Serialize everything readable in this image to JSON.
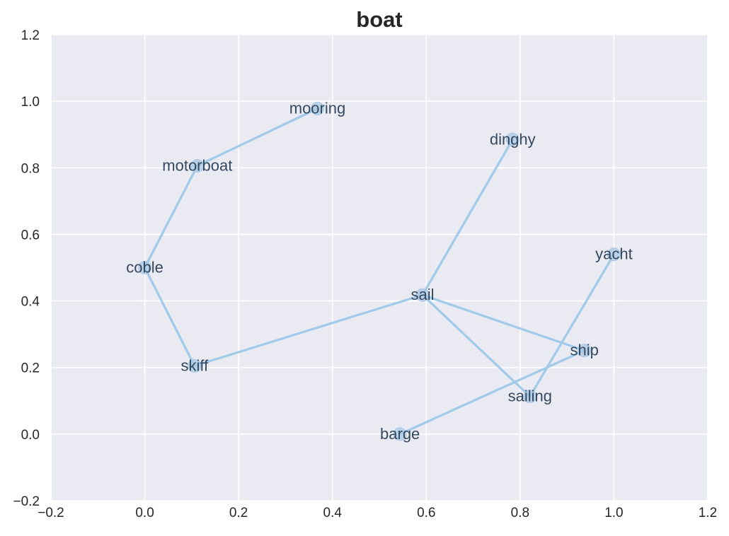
{
  "chart_data": {
    "type": "scatter",
    "title": "boat",
    "xlabel": "",
    "ylabel": "",
    "xlim": [
      -0.2,
      1.2
    ],
    "ylim": [
      -0.2,
      1.2
    ],
    "xticks": [
      "−0.2",
      "0.0",
      "0.2",
      "0.4",
      "0.6",
      "0.8",
      "1.0",
      "1.2"
    ],
    "yticks": [
      "−0.2",
      "0.0",
      "0.2",
      "0.4",
      "0.6",
      "0.8",
      "1.0",
      "1.2"
    ],
    "grid": true,
    "background_color": "#eaeaf2",
    "line_color": "#a1c9e8",
    "marker_color": "#a8c8e6",
    "label_color": "#34495e",
    "points": [
      {
        "label": "mooring",
        "x": 0.368,
        "y": 0.978
      },
      {
        "label": "motorboat",
        "x": 0.112,
        "y": 0.806
      },
      {
        "label": "coble",
        "x": 0.0,
        "y": 0.5
      },
      {
        "label": "skiff",
        "x": 0.106,
        "y": 0.205
      },
      {
        "label": "sail",
        "x": 0.592,
        "y": 0.418
      },
      {
        "label": "dinghy",
        "x": 0.784,
        "y": 0.885
      },
      {
        "label": "ship",
        "x": 0.937,
        "y": 0.251
      },
      {
        "label": "sailing",
        "x": 0.821,
        "y": 0.113
      },
      {
        "label": "barge",
        "x": 0.544,
        "y": 0.0
      },
      {
        "label": "yacht",
        "x": 1.0,
        "y": 0.54
      }
    ],
    "edges": [
      [
        "mooring",
        "motorboat"
      ],
      [
        "motorboat",
        "coble"
      ],
      [
        "coble",
        "skiff"
      ],
      [
        "skiff",
        "sail"
      ],
      [
        "sail",
        "dinghy"
      ],
      [
        "sail",
        "ship"
      ],
      [
        "sail",
        "sailing"
      ],
      [
        "ship",
        "barge"
      ],
      [
        "sailing",
        "yacht"
      ]
    ]
  }
}
